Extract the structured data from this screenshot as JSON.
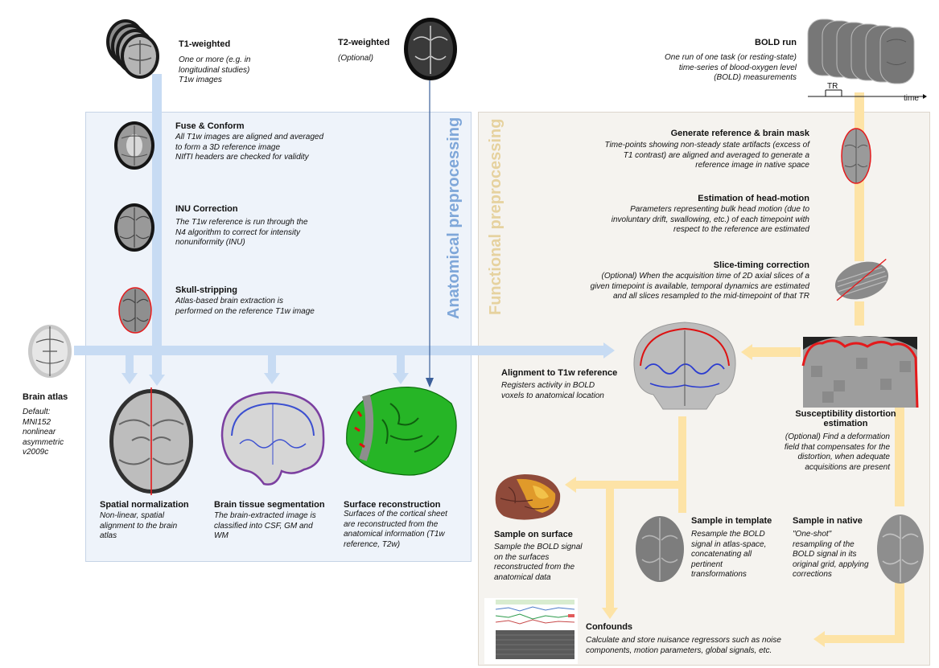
{
  "sections": {
    "anatomical": "Anatomical preprocessing",
    "functional": "Functional preprocessing"
  },
  "colors": {
    "anatomical_flow": "#c7dbf3",
    "functional_flow": "#fde3a6",
    "anatomical_panel": "#eef3fa",
    "functional_panel": "#f5f3ef",
    "t2_arrow": "#3b5f9a",
    "brain_mask_outline": "#e41a1c"
  },
  "inputs": {
    "t1": {
      "title": "T1-weighted",
      "desc": [
        "One or more (e.g. in",
        "longitudinal studies)",
        "T1w images"
      ]
    },
    "t2": {
      "title": "T2-weighted",
      "desc": [
        "(Optional)"
      ]
    },
    "bold": {
      "title": "BOLD run",
      "desc": [
        "One run of one task (or resting-state)",
        "time-series of blood-oxygen level",
        "(BOLD) measurements"
      ],
      "tr_label": "TR",
      "time_label": "time"
    },
    "atlas": {
      "title": "Brain atlas",
      "desc": [
        "Default:",
        "MNI152",
        "nonlinear",
        "asymmetric",
        "v2009c"
      ]
    }
  },
  "anatomical_steps": {
    "fuse": {
      "title": "Fuse & Conform",
      "desc": [
        "All T1w images are aligned and averaged",
        "to form a 3D reference image",
        "NIfTI headers are checked for validity"
      ]
    },
    "inu": {
      "title": "INU Correction",
      "desc": [
        "The T1w reference is run through the",
        "N4 algorithm to correct for intensity",
        "nonuniformity (INU)"
      ]
    },
    "skull": {
      "title": "Skull-stripping",
      "desc": [
        "Atlas-based brain extraction is",
        "performed on the reference T1w image"
      ]
    },
    "norm": {
      "title": "Spatial normalization",
      "desc": [
        "Non-linear, spatial",
        "alignment to the brain",
        "atlas"
      ]
    },
    "seg": {
      "title": "Brain tissue segmentation",
      "desc": [
        "The brain-extracted image is",
        "classified into CSF, GM and",
        "WM"
      ]
    },
    "surf": {
      "title": "Surface reconstruction",
      "desc": [
        "Surfaces of the cortical sheet",
        "are reconstructed from the",
        "anatomical information (T1w",
        "reference, T2w)"
      ]
    }
  },
  "functional_steps": {
    "ref": {
      "title": "Generate reference & brain mask",
      "desc": [
        "Time-points showing non-steady state artifacts (excess of",
        "T1 contrast) are aligned and averaged to generate a",
        "reference image in native space"
      ]
    },
    "motion": {
      "title": "Estimation of head-motion",
      "desc": [
        "Parameters representing bulk head motion (due to",
        "involuntary drift, swallowing, etc.) of each timepoint with",
        "respect to the reference are estimated"
      ]
    },
    "stc": {
      "title": "Slice-timing correction",
      "desc": [
        "(Optional) When the acquisition time of 2D axial slices of a",
        "given timepoint is available, temporal dynamics are estimated",
        "and all slices resampled to the mid-timepoint of that TR"
      ]
    },
    "align": {
      "title": "Alignment to T1w reference",
      "desc": [
        "Registers activity in BOLD",
        "voxels to anatomical location"
      ]
    },
    "sdc": {
      "title": [
        "Susceptibility distortion",
        "estimation"
      ],
      "desc": [
        "(Optional) Find a deformation",
        "field that compensates for the",
        "distortion, when adequate",
        "acquisitions are present"
      ]
    },
    "surface": {
      "title": "Sample on surface",
      "desc": [
        "Sample the BOLD signal",
        "on the surfaces",
        "reconstructed from the",
        "anatomical data"
      ]
    },
    "template": {
      "title": "Sample in template",
      "desc": [
        "Resample the BOLD",
        "signal in atlas-space,",
        "concatenating all",
        "pertinent",
        "transformations"
      ]
    },
    "native": {
      "title": "Sample in native",
      "desc": [
        "\"One-shot\"",
        "resampling of the",
        "BOLD signal in its",
        "original grid, applying",
        "corrections"
      ]
    },
    "confounds": {
      "title": "Confounds",
      "desc": [
        "Calculate and store nuisance regressors such as noise",
        "components, motion parameters, global signals, etc."
      ]
    }
  }
}
